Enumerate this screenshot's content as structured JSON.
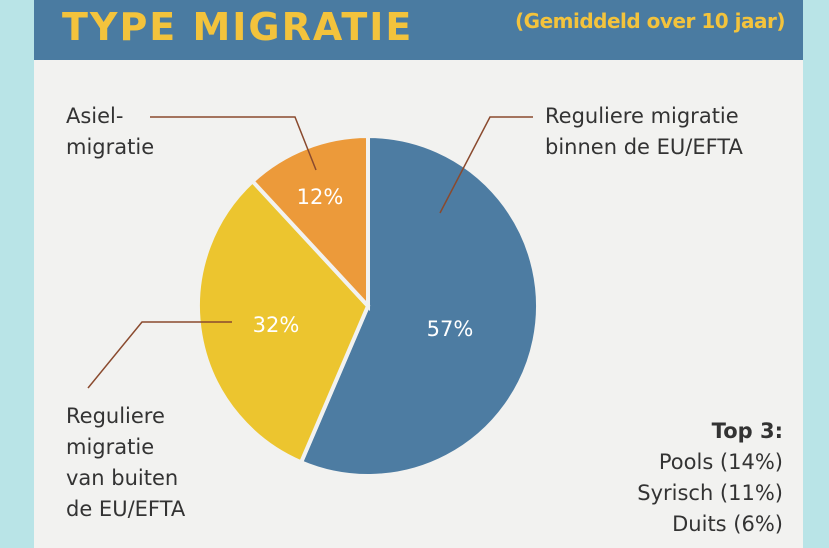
{
  "header": {
    "title": "TYPE MIGRATIE",
    "subtitle": "(Gemiddeld over 10 jaar)"
  },
  "chart_data": {
    "type": "pie",
    "title": "TYPE MIGRATIE",
    "subtitle": "(Gemiddeld over 10 jaar)",
    "slices": [
      {
        "label_lines": [
          "Reguliere migratie",
          "binnen de EU/EFTA"
        ],
        "value": 57,
        "value_label": "57%",
        "color": "#4d7ca2"
      },
      {
        "label_lines": [
          "Reguliere",
          "migratie",
          "van buiten",
          "de EU/EFTA"
        ],
        "value": 32,
        "value_label": "32%",
        "color": "#ecc52f"
      },
      {
        "label_lines": [
          "Asiel-",
          "migratie"
        ],
        "value": 12,
        "value_label": "12%",
        "color": "#ec9a3a"
      }
    ],
    "legend": "callout labels"
  },
  "top3": {
    "title": "Top 3:",
    "items": [
      "Pools (14%)",
      "Syrisch (11%)",
      "Duits (6%)"
    ]
  },
  "colors": {
    "header_bg": "#4a7ba1",
    "header_text": "#f3c33c",
    "background": "#f2f2f0",
    "outer": "#b9e4e7",
    "leader": "#8a4a2e"
  }
}
